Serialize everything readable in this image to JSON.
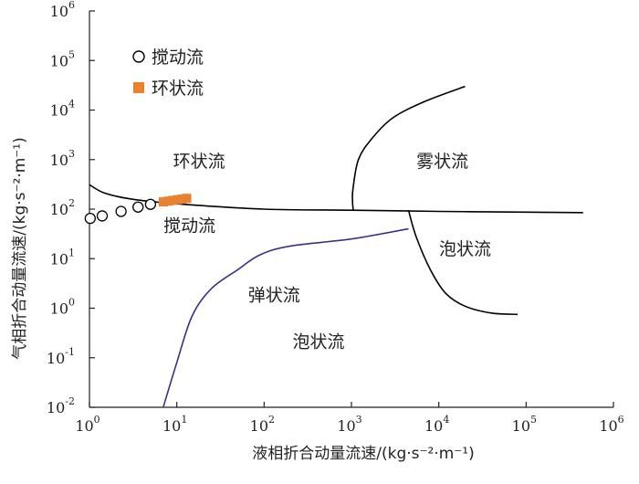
{
  "chart_data": {
    "type": "scatter",
    "xscale": "log",
    "yscale": "log",
    "xlim": [
      1,
      1000000
    ],
    "ylim": [
      0.01,
      1000000
    ],
    "xlabel": "液相折合动量流速/(kg·s⁻²·m⁻¹)",
    "ylabel": "气相折合动量流速/(kg·s⁻²·m⁻¹)",
    "x_ticks": [
      {
        "base": "10",
        "exp": "0"
      },
      {
        "base": "10",
        "exp": "1"
      },
      {
        "base": "10",
        "exp": "2"
      },
      {
        "base": "10",
        "exp": "3"
      },
      {
        "base": "10",
        "exp": "4"
      },
      {
        "base": "10",
        "exp": "5"
      },
      {
        "base": "10",
        "exp": "6"
      }
    ],
    "y_ticks": [
      {
        "base": "10",
        "exp": "-2"
      },
      {
        "base": "10",
        "exp": "-1"
      },
      {
        "base": "10",
        "exp": "0"
      },
      {
        "base": "10",
        "exp": "1"
      },
      {
        "base": "10",
        "exp": "2"
      },
      {
        "base": "10",
        "exp": "3"
      },
      {
        "base": "10",
        "exp": "4"
      },
      {
        "base": "10",
        "exp": "5"
      },
      {
        "base": "10",
        "exp": "6"
      }
    ],
    "legend_position": "top-left",
    "series": [
      {
        "name": "搅动流",
        "marker": "circle-open",
        "color": "#000000",
        "points": [
          [
            1.02,
            65
          ],
          [
            1.4,
            73
          ],
          [
            2.3,
            90
          ],
          [
            3.6,
            110
          ],
          [
            5.0,
            125
          ]
        ]
      },
      {
        "name": "环状流",
        "marker": "square-filled",
        "color": "#e8822f",
        "points": [
          [
            7.0,
            140
          ],
          [
            8.0,
            145
          ],
          [
            9.0,
            150
          ],
          [
            10.2,
            155
          ],
          [
            11.5,
            160
          ],
          [
            13.0,
            165
          ]
        ]
      }
    ],
    "boundaries": [
      {
        "id": "upper-boundary",
        "color": "#000000",
        "points": [
          [
            1,
            310
          ],
          [
            1.5,
            210
          ],
          [
            3,
            160
          ],
          [
            10,
            128
          ],
          [
            100,
            100
          ],
          [
            1000,
            95
          ],
          [
            10000,
            90
          ],
          [
            100000,
            87
          ],
          [
            450000,
            85
          ]
        ]
      },
      {
        "id": "mist-boundary",
        "color": "#000000",
        "points": [
          [
            1050,
            95
          ],
          [
            1030,
            140
          ],
          [
            1040,
            250
          ],
          [
            1200,
            1000
          ],
          [
            1700,
            2600
          ],
          [
            3000,
            7000
          ],
          [
            7000,
            15000
          ],
          [
            20000,
            30000
          ]
        ]
      },
      {
        "id": "bubble-right-boundary",
        "color": "#000000",
        "points": [
          [
            4500,
            95
          ],
          [
            5500,
            28
          ],
          [
            8000,
            6
          ],
          [
            12000,
            2
          ],
          [
            20000,
            1.1
          ],
          [
            40000,
            0.8
          ],
          [
            80000,
            0.75
          ]
        ]
      },
      {
        "id": "slug-boundary",
        "color": "#3b2f8a",
        "points": [
          [
            7,
            0.01
          ],
          [
            10,
            0.08
          ],
          [
            15,
            0.7
          ],
          [
            25,
            2.5
          ],
          [
            50,
            6
          ],
          [
            90,
            12
          ],
          [
            200,
            18
          ],
          [
            1000,
            25
          ],
          [
            4500,
            40
          ]
        ]
      }
    ],
    "regions": [
      {
        "id": "annular",
        "label": "环状流",
        "x": 18,
        "y": 700
      },
      {
        "id": "mist",
        "label": "雾状流",
        "x": 11000,
        "y": 700
      },
      {
        "id": "churn",
        "label": "搅动流",
        "x": 14,
        "y": 35
      },
      {
        "id": "bubble-right",
        "label": "泡状流",
        "x": 20000,
        "y": 12
      },
      {
        "id": "slug",
        "label": "弹状流",
        "x": 130,
        "y": 1.4
      },
      {
        "id": "bubble-lower",
        "label": "泡状流",
        "x": 420,
        "y": 0.16
      }
    ]
  }
}
